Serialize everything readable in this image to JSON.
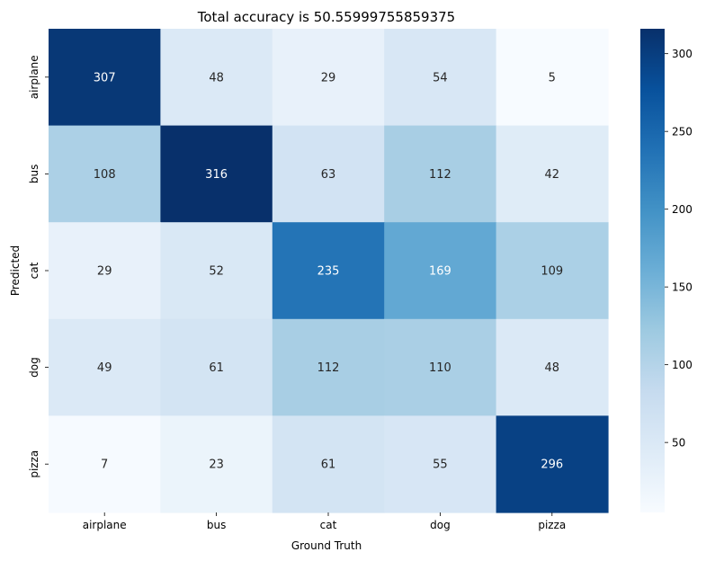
{
  "chart_data": {
    "type": "heatmap",
    "title": "Total accuracy is 50.55999755859375",
    "xlabel": "Ground Truth",
    "ylabel": "Predicted",
    "x_categories": [
      "airplane",
      "bus",
      "cat",
      "dog",
      "pizza"
    ],
    "y_categories": [
      "airplane",
      "bus",
      "cat",
      "dog",
      "pizza"
    ],
    "values": [
      [
        307,
        48,
        29,
        54,
        5
      ],
      [
        108,
        316,
        63,
        112,
        42
      ],
      [
        29,
        52,
        235,
        169,
        109
      ],
      [
        49,
        61,
        112,
        110,
        48
      ],
      [
        7,
        23,
        61,
        55,
        296
      ]
    ],
    "color_range": [
      5,
      316
    ],
    "colormap": "Blues",
    "colorbar": {
      "ticks": [
        50,
        100,
        150,
        200,
        250,
        300
      ]
    }
  }
}
